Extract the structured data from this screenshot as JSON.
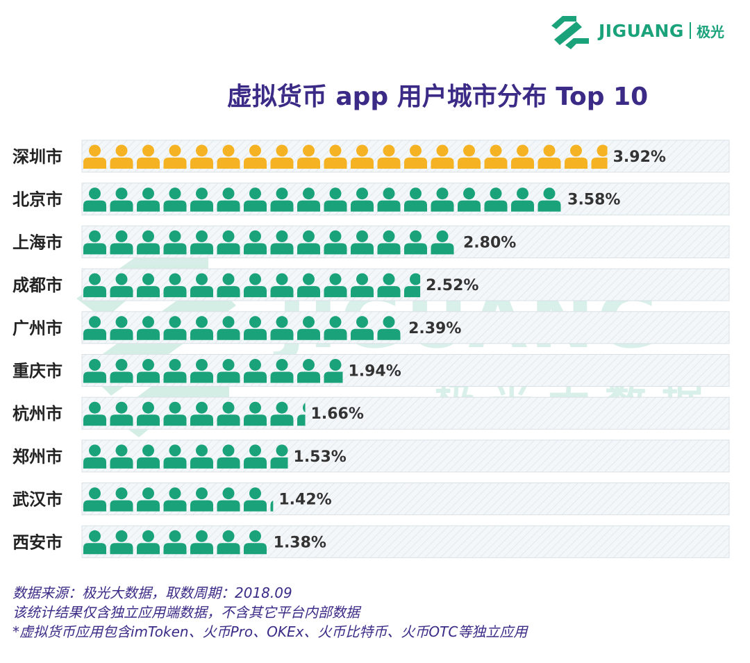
{
  "brand": {
    "name": "JIGUANG",
    "name_cn": "极光",
    "color": "#1aa37a"
  },
  "watermark": {
    "text": "JIGUANG",
    "text_cn": "极光大数据"
  },
  "chart_data": {
    "type": "bar",
    "title": "虚拟货币 app 用户城市分布 Top 10",
    "categories": [
      "深圳市",
      "北京市",
      "上海市",
      "成都市",
      "广州市",
      "重庆市",
      "杭州市",
      "郑州市",
      "武汉市",
      "西安市"
    ],
    "values": [
      3.92,
      3.58,
      2.8,
      2.52,
      2.39,
      1.94,
      1.66,
      1.53,
      1.42,
      1.38
    ],
    "value_labels": [
      "3.92%",
      "3.58%",
      "2.80%",
      "2.52%",
      "2.39%",
      "1.94%",
      "1.66%",
      "1.53%",
      "1.42%",
      "1.38%"
    ],
    "unit": "%",
    "icons_per_percent": 5,
    "highlight_color": "#f5b324",
    "default_color": "#1aa37a",
    "highlight_index": 0
  },
  "footer": {
    "line1": "数据来源：极光大数据，取数周期：2018.09",
    "line2": "该统计结果仅含独立应用端数据，不含其它平台内部数据",
    "line3": "*虚拟货币应用包含imToken、火币Pro、OKEx、火币比特币、火币OTC等独立应用"
  }
}
